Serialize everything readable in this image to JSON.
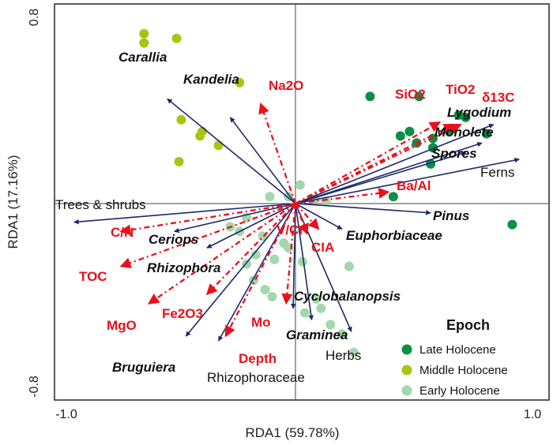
{
  "chart_data": {
    "type": "scatter",
    "subtype": "rda-biplot",
    "xlabel": "RDA1 (59.78%)",
    "ylabel": "RDA1 (17.16%)",
    "xlim": [
      -1.0,
      1.0
    ],
    "ylim": [
      -0.8,
      0.8
    ],
    "x_ticks": [
      "-1.0",
      "1.0"
    ],
    "y_ticks": [
      "0.8",
      "-0.8"
    ],
    "reference_lines": {
      "x0": 0,
      "y0": 0
    },
    "colors": {
      "arrow_species": "#1b2a6b",
      "arrow_env": "#e8111b",
      "late": "#0a8f45",
      "middle": "#a9c514",
      "early": "#a3d7ad"
    },
    "legend": {
      "title": "Epoch",
      "position": "bottom-right",
      "entries": [
        {
          "label": "Late Holocene",
          "group": "late"
        },
        {
          "label": "Middle Holocene",
          "group": "middle"
        },
        {
          "label": "Early Holocene",
          "group": "early"
        }
      ]
    },
    "species_arrows": [
      {
        "name": "Carallia",
        "x": -0.55,
        "y": 0.45,
        "italic": true
      },
      {
        "name": "Kandelia",
        "x": -0.28,
        "y": 0.37,
        "italic": true
      },
      {
        "name": "Lygodium",
        "x": 0.85,
        "y": 0.34,
        "italic": true
      },
      {
        "name": "Monolete",
        "x": 0.8,
        "y": 0.26,
        "italic": true
      },
      {
        "name": "Spores",
        "x": 0.73,
        "y": 0.22,
        "italic": true
      },
      {
        "name": "Ferns",
        "x": 0.96,
        "y": 0.19,
        "italic": false
      },
      {
        "name": "Pinus",
        "x": 0.58,
        "y": -0.04,
        "italic": true
      },
      {
        "name": "Euphorbiaceae",
        "x": 0.2,
        "y": -0.11,
        "italic": true
      },
      {
        "name": "Trees & shrubs",
        "x": -0.95,
        "y": -0.08,
        "italic": false
      },
      {
        "name": "Ceriops",
        "x": -0.52,
        "y": -0.12,
        "italic": true
      },
      {
        "name": "Rhizophora",
        "x": -0.38,
        "y": -0.19,
        "italic": true
      },
      {
        "name": "Cyclobalanopsis",
        "x": -0.01,
        "y": -0.45,
        "italic": true
      },
      {
        "name": "Graminea",
        "x": 0.07,
        "y": -0.5,
        "italic": true
      },
      {
        "name": "Herbs",
        "x": 0.24,
        "y": -0.55,
        "italic": false
      },
      {
        "name": "Bruguiera",
        "x": -0.47,
        "y": -0.57,
        "italic": true
      },
      {
        "name": "Rhizophoraceae",
        "x": -0.33,
        "y": -0.59,
        "italic": false
      }
    ],
    "environment_arrows": [
      {
        "name": "Na2O",
        "x": -0.15,
        "y": 0.43
      },
      {
        "name": "SiO2",
        "x": 0.62,
        "y": 0.35
      },
      {
        "name": "TiO2",
        "x": 0.68,
        "y": 0.34
      },
      {
        "name": "δ13C",
        "x": 0.71,
        "y": 0.34
      },
      {
        "name": "Ba/Al",
        "x": 0.4,
        "y": 0.05
      },
      {
        "name": "V/Cr",
        "x": 0.05,
        "y": -0.13
      },
      {
        "name": "CIA",
        "x": 0.1,
        "y": -0.11
      },
      {
        "name": "C/N",
        "x": -0.75,
        "y": -0.12
      },
      {
        "name": "TOC",
        "x": -0.75,
        "y": -0.27
      },
      {
        "name": "MgO",
        "x": -0.63,
        "y": -0.43
      },
      {
        "name": "Fe2O3",
        "x": -0.38,
        "y": -0.39
      },
      {
        "name": "Mo",
        "x": -0.04,
        "y": -0.43
      },
      {
        "name": "Depth",
        "x": -0.3,
        "y": -0.57
      }
    ],
    "series": [
      {
        "name": "Late Holocene",
        "group": "late",
        "points": [
          [
            0.32,
            0.46
          ],
          [
            0.53,
            0.46
          ],
          [
            0.7,
            0.38
          ],
          [
            0.73,
            0.37
          ],
          [
            0.49,
            0.31
          ],
          [
            0.66,
            0.31
          ],
          [
            0.45,
            0.29
          ],
          [
            0.59,
            0.28
          ],
          [
            0.52,
            0.26
          ],
          [
            0.59,
            0.24
          ],
          [
            0.82,
            0.3
          ],
          [
            0.58,
            0.17
          ],
          [
            0.42,
            0.03
          ],
          [
            0.93,
            -0.09
          ]
        ]
      },
      {
        "name": "Middle Holocene",
        "group": "middle",
        "points": [
          [
            -0.65,
            0.73
          ],
          [
            -0.65,
            0.69
          ],
          [
            -0.51,
            0.71
          ],
          [
            -0.24,
            0.52
          ],
          [
            -0.49,
            0.36
          ],
          [
            -0.4,
            0.31
          ],
          [
            -0.41,
            0.29
          ],
          [
            -0.33,
            0.25
          ],
          [
            -0.5,
            0.18
          ]
        ]
      },
      {
        "name": "Early Holocene",
        "group": "early",
        "points": [
          [
            0.02,
            0.08
          ],
          [
            -0.11,
            0.03
          ],
          [
            -0.03,
            0.03
          ],
          [
            0.08,
            0.02
          ],
          [
            0.13,
            0.01
          ],
          [
            -0.21,
            -0.06
          ],
          [
            -0.28,
            -0.1
          ],
          [
            -0.24,
            -0.12
          ],
          [
            -0.14,
            -0.14
          ],
          [
            -0.05,
            -0.17
          ],
          [
            -0.03,
            -0.19
          ],
          [
            -0.17,
            -0.22
          ],
          [
            -0.09,
            -0.24
          ],
          [
            0.03,
            -0.25
          ],
          [
            -0.21,
            -0.26
          ],
          [
            0.23,
            -0.27
          ],
          [
            -0.18,
            -0.33
          ],
          [
            -0.13,
            -0.37
          ],
          [
            -0.1,
            -0.4
          ],
          [
            0.09,
            -0.41
          ],
          [
            0.11,
            -0.45
          ],
          [
            0.04,
            -0.47
          ],
          [
            0.15,
            -0.52
          ],
          [
            0.2,
            -0.56
          ],
          [
            0.25,
            -0.64
          ]
        ]
      }
    ]
  }
}
